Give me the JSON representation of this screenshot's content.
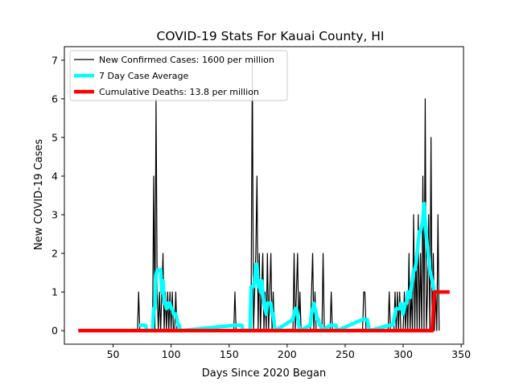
{
  "chart_data": {
    "type": "line",
    "title": "COVID-19 Stats For Kauai County, HI",
    "xlabel": "Days Since 2020 Began",
    "ylabel": "New COVID-19 Cases",
    "xlim": [
      8,
      352
    ],
    "ylim": [
      -0.35,
      7.35
    ],
    "xticks": [
      50,
      100,
      150,
      200,
      250,
      300,
      350
    ],
    "yticks": [
      0,
      1,
      2,
      3,
      4,
      5,
      6,
      7
    ],
    "grid": false,
    "legend_position": "top-left",
    "series": [
      {
        "name": "New Confirmed Cases: 1600 per million",
        "color": "#000000",
        "style": "thin",
        "points": [
          [
            20,
            0
          ],
          [
            71,
            0
          ],
          [
            72,
            1
          ],
          [
            73,
            0
          ],
          [
            84,
            0
          ],
          [
            85,
            4
          ],
          [
            86,
            0
          ],
          [
            87,
            6
          ],
          [
            88,
            1
          ],
          [
            89,
            0
          ],
          [
            90,
            1
          ],
          [
            91,
            0
          ],
          [
            92,
            1
          ],
          [
            93,
            2
          ],
          [
            94,
            0
          ],
          [
            95,
            1
          ],
          [
            96,
            0
          ],
          [
            97,
            1
          ],
          [
            98,
            0
          ],
          [
            99,
            1
          ],
          [
            100,
            0
          ],
          [
            101,
            1
          ],
          [
            102,
            0
          ],
          [
            103,
            0
          ],
          [
            104,
            1
          ],
          [
            105,
            0
          ],
          [
            154,
            0
          ],
          [
            155,
            1
          ],
          [
            156,
            0
          ],
          [
            168,
            0
          ],
          [
            169,
            1
          ],
          [
            170,
            7
          ],
          [
            171,
            0
          ],
          [
            172,
            1
          ],
          [
            173,
            2
          ],
          [
            174,
            4
          ],
          [
            175,
            0
          ],
          [
            176,
            2
          ],
          [
            177,
            0
          ],
          [
            178,
            1
          ],
          [
            179,
            2
          ],
          [
            180,
            0
          ],
          [
            181,
            1
          ],
          [
            182,
            0
          ],
          [
            183,
            2
          ],
          [
            184,
            0
          ],
          [
            185,
            1
          ],
          [
            186,
            2
          ],
          [
            187,
            0
          ],
          [
            188,
            1
          ],
          [
            189,
            0
          ],
          [
            190,
            0
          ],
          [
            205,
            0
          ],
          [
            206,
            2
          ],
          [
            207,
            0
          ],
          [
            208,
            1
          ],
          [
            209,
            2
          ],
          [
            210,
            0
          ],
          [
            211,
            1
          ],
          [
            212,
            0
          ],
          [
            220,
            0
          ],
          [
            221,
            1
          ],
          [
            222,
            2
          ],
          [
            223,
            0
          ],
          [
            224,
            1
          ],
          [
            225,
            0
          ],
          [
            230,
            0
          ],
          [
            231,
            2
          ],
          [
            232,
            0
          ],
          [
            237,
            0
          ],
          [
            238,
            1
          ],
          [
            239,
            0
          ],
          [
            265,
            0
          ],
          [
            266,
            1
          ],
          [
            267,
            1
          ],
          [
            268,
            0
          ],
          [
            287,
            0
          ],
          [
            288,
            1
          ],
          [
            289,
            0
          ],
          [
            292,
            0
          ],
          [
            293,
            1
          ],
          [
            294,
            0
          ],
          [
            295,
            1
          ],
          [
            296,
            0
          ],
          [
            297,
            1
          ],
          [
            298,
            0
          ],
          [
            300,
            0
          ],
          [
            301,
            1
          ],
          [
            302,
            0
          ],
          [
            303,
            1
          ],
          [
            304,
            0
          ],
          [
            305,
            2
          ],
          [
            306,
            0
          ],
          [
            307,
            1
          ],
          [
            308,
            0
          ],
          [
            309,
            3
          ],
          [
            310,
            0
          ],
          [
            311,
            2
          ],
          [
            312,
            0
          ],
          [
            313,
            3
          ],
          [
            314,
            0
          ],
          [
            315,
            2
          ],
          [
            316,
            0
          ],
          [
            317,
            4
          ],
          [
            318,
            0
          ],
          [
            319,
            6
          ],
          [
            320,
            0
          ],
          [
            321,
            1
          ],
          [
            322,
            3
          ],
          [
            323,
            0
          ],
          [
            324,
            5
          ],
          [
            325,
            0
          ],
          [
            326,
            2
          ],
          [
            327,
            0
          ],
          [
            328,
            1
          ],
          [
            329,
            0
          ],
          [
            330,
            3
          ],
          [
            331,
            0
          ]
        ]
      },
      {
        "name": "7 Day Case Average",
        "color": "#00FFFF",
        "style": "thick",
        "points": [
          [
            72,
            0.14
          ],
          [
            73,
            0.14
          ],
          [
            74,
            0.14
          ],
          [
            75,
            0.14
          ],
          [
            76,
            0.14
          ],
          [
            77,
            0.14
          ],
          [
            78,
            0.14
          ],
          [
            79,
            0.0
          ],
          [
            84,
            0.0
          ],
          [
            85,
            0.57
          ],
          [
            86,
            0.57
          ],
          [
            87,
            1.43
          ],
          [
            88,
            1.57
          ],
          [
            89,
            1.57
          ],
          [
            90,
            1.57
          ],
          [
            91,
            1.57
          ],
          [
            92,
            1.0
          ],
          [
            93,
            1.29
          ],
          [
            94,
            0.71
          ],
          [
            95,
            0.71
          ],
          [
            96,
            0.57
          ],
          [
            97,
            0.71
          ],
          [
            98,
            0.71
          ],
          [
            99,
            0.71
          ],
          [
            100,
            0.57
          ],
          [
            101,
            0.57
          ],
          [
            102,
            0.43
          ],
          [
            103,
            0.43
          ],
          [
            104,
            0.43
          ],
          [
            105,
            0.29
          ],
          [
            106,
            0.14
          ],
          [
            107,
            0.14
          ],
          [
            108,
            0.0
          ],
          [
            155,
            0.14
          ],
          [
            156,
            0.14
          ],
          [
            157,
            0.14
          ],
          [
            158,
            0.14
          ],
          [
            159,
            0.14
          ],
          [
            160,
            0.14
          ],
          [
            161,
            0.14
          ],
          [
            162,
            0.0
          ],
          [
            168,
            0.0
          ],
          [
            169,
            1.14
          ],
          [
            170,
            1.14
          ],
          [
            171,
            1.14
          ],
          [
            172,
            1.29
          ],
          [
            173,
            1.71
          ],
          [
            174,
            1.71
          ],
          [
            175,
            1.14
          ],
          [
            176,
            1.29
          ],
          [
            177,
            1.0
          ],
          [
            178,
            1.29
          ],
          [
            179,
            1.0
          ],
          [
            180,
            0.71
          ],
          [
            181,
            0.57
          ],
          [
            182,
            0.43
          ],
          [
            183,
            0.71
          ],
          [
            184,
            0.71
          ],
          [
            185,
            0.71
          ],
          [
            186,
            0.71
          ],
          [
            187,
            0.43
          ],
          [
            188,
            0.43
          ],
          [
            189,
            0.14
          ],
          [
            190,
            0.0
          ],
          [
            205,
            0.29
          ],
          [
            206,
            0.43
          ],
          [
            207,
            0.57
          ],
          [
            208,
            0.57
          ],
          [
            209,
            0.43
          ],
          [
            210,
            0.14
          ],
          [
            211,
            0.0
          ],
          [
            220,
            0.14
          ],
          [
            221,
            0.43
          ],
          [
            222,
            0.57
          ],
          [
            223,
            0.71
          ],
          [
            224,
            0.57
          ],
          [
            225,
            0.43
          ],
          [
            226,
            0.29
          ],
          [
            227,
            0.29
          ],
          [
            228,
            0.14
          ],
          [
            229,
            0.14
          ],
          [
            230,
            0.0
          ],
          [
            237,
            0.14
          ],
          [
            238,
            0.14
          ],
          [
            239,
            0.14
          ],
          [
            240,
            0.14
          ],
          [
            241,
            0.14
          ],
          [
            242,
            0.14
          ],
          [
            243,
            0.0
          ],
          [
            265,
            0.29
          ],
          [
            266,
            0.29
          ],
          [
            267,
            0.29
          ],
          [
            268,
            0.29
          ],
          [
            269,
            0.29
          ],
          [
            270,
            0.14
          ],
          [
            271,
            0.0
          ],
          [
            288,
            0.14
          ],
          [
            289,
            0.14
          ],
          [
            290,
            0.14
          ],
          [
            291,
            0.14
          ],
          [
            292,
            0.29
          ],
          [
            293,
            0.43
          ],
          [
            294,
            0.57
          ],
          [
            295,
            0.57
          ],
          [
            296,
            0.57
          ],
          [
            297,
            0.57
          ],
          [
            298,
            0.71
          ],
          [
            299,
            0.57
          ],
          [
            300,
            0.43
          ],
          [
            301,
            0.57
          ],
          [
            302,
            0.71
          ],
          [
            303,
            0.71
          ],
          [
            304,
            1.0
          ],
          [
            305,
            1.0
          ],
          [
            306,
            0.86
          ],
          [
            307,
            1.14
          ],
          [
            308,
            1.29
          ],
          [
            309,
            1.57
          ],
          [
            310,
            1.57
          ],
          [
            311,
            1.71
          ],
          [
            312,
            2.0
          ],
          [
            313,
            2.29
          ],
          [
            314,
            2.57
          ],
          [
            315,
            2.57
          ],
          [
            316,
            2.71
          ],
          [
            317,
            2.86
          ],
          [
            318,
            3.29
          ],
          [
            319,
            2.86
          ],
          [
            320,
            2.43
          ],
          [
            321,
            2.14
          ],
          [
            322,
            1.86
          ],
          [
            323,
            1.57
          ],
          [
            324,
            1.43
          ],
          [
            325,
            1.29
          ],
          [
            326,
            1.14
          ],
          [
            327,
            1.0
          ]
        ]
      },
      {
        "name": "Cumulative Deaths: 13.8 per million",
        "color": "#FF0000",
        "style": "thick",
        "points": [
          [
            20,
            0
          ],
          [
            325,
            0
          ],
          [
            327,
            1
          ],
          [
            340,
            1
          ]
        ]
      }
    ]
  }
}
